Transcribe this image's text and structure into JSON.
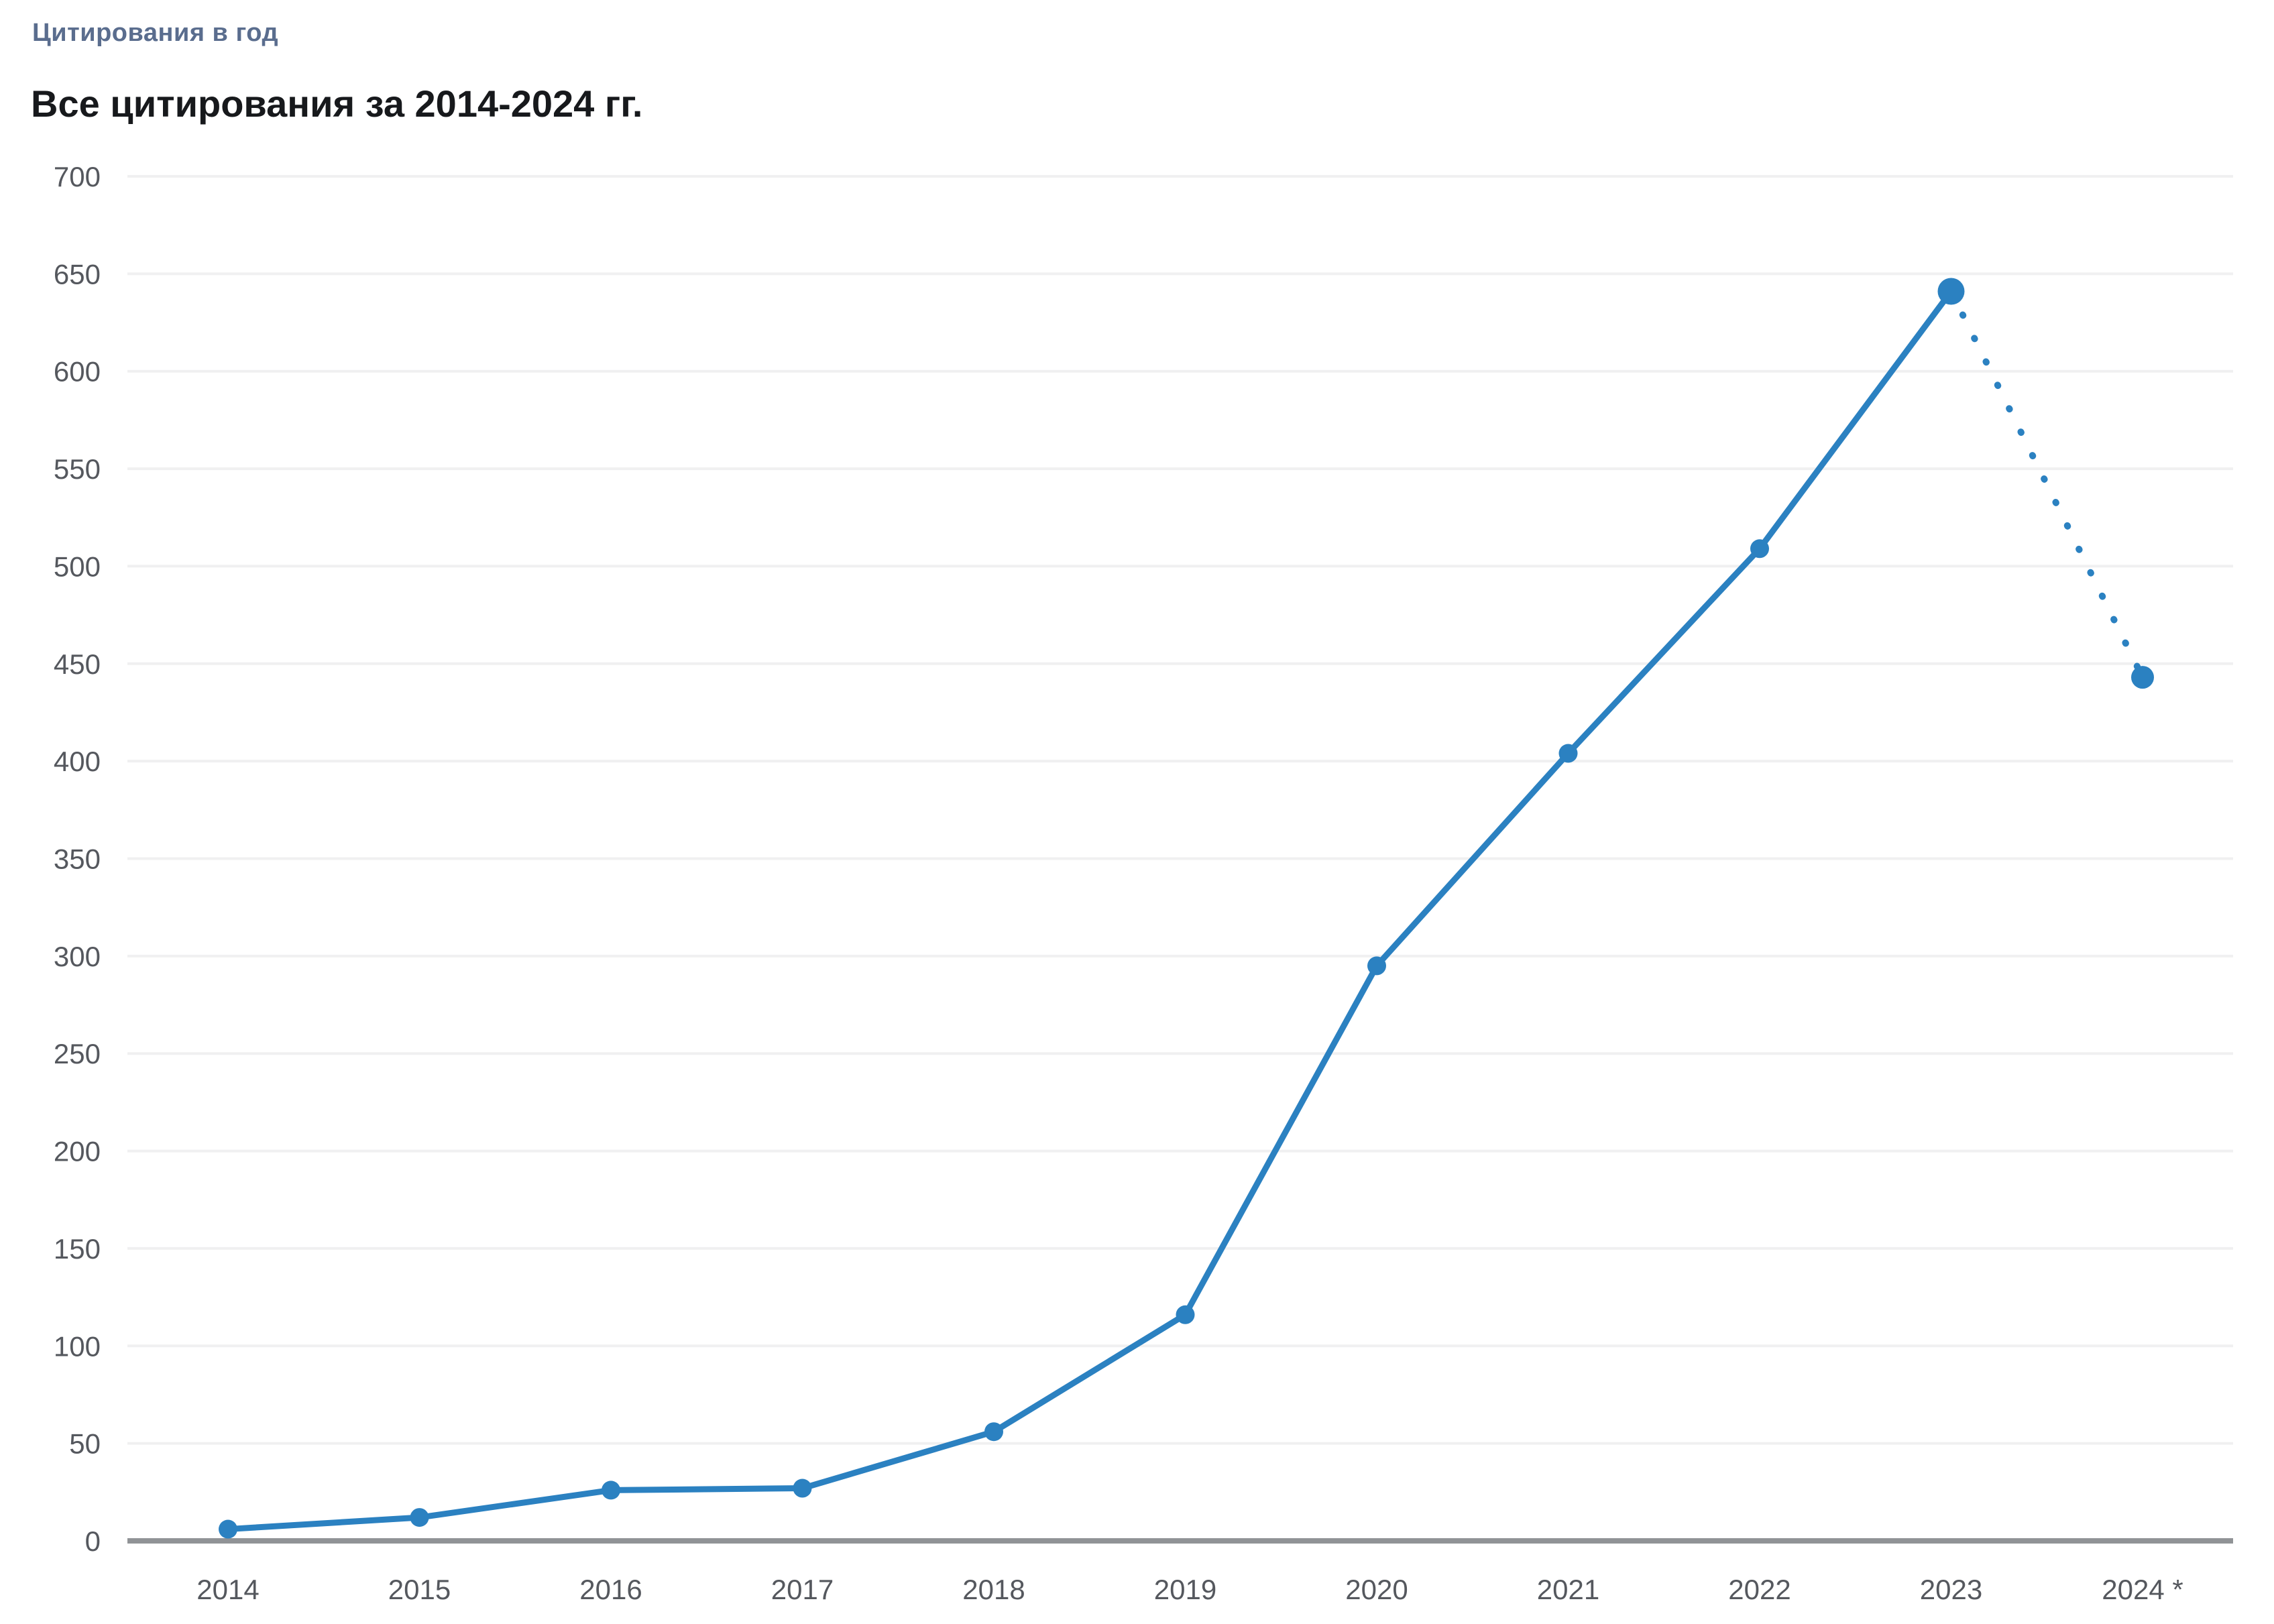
{
  "header": {
    "label": "Цитирования в год",
    "title": "Все цитирования за 2014-2024 гг."
  },
  "colors": {
    "line": "#2b81c1",
    "gridline": "#f0f0f1",
    "axis_line": "#909396",
    "tick_text": "#55585e",
    "title_text": "#17191c",
    "subtitle_text": "#5a6d8e",
    "background": "#ffffff"
  },
  "chart_data": {
    "type": "line",
    "title": "Все цитирования за 2014-2024 гг.",
    "context_label": "Цитирования в год",
    "categories": [
      "2014",
      "2015",
      "2016",
      "2017",
      "2018",
      "2019",
      "2020",
      "2021",
      "2022",
      "2023",
      "2024 *"
    ],
    "series": [
      {
        "name": "Цитирования в год",
        "values": [
          6,
          12,
          26,
          27,
          56,
          116,
          295,
          404,
          509,
          641,
          443
        ]
      }
    ],
    "projection": {
      "segment": [
        "2023",
        "2024 *"
      ],
      "style": "dotted"
    },
    "ylim": [
      0,
      700
    ],
    "ytick_step": 50,
    "xlabel": "",
    "ylabel": "",
    "grid": "horizontal",
    "legend": "none"
  }
}
